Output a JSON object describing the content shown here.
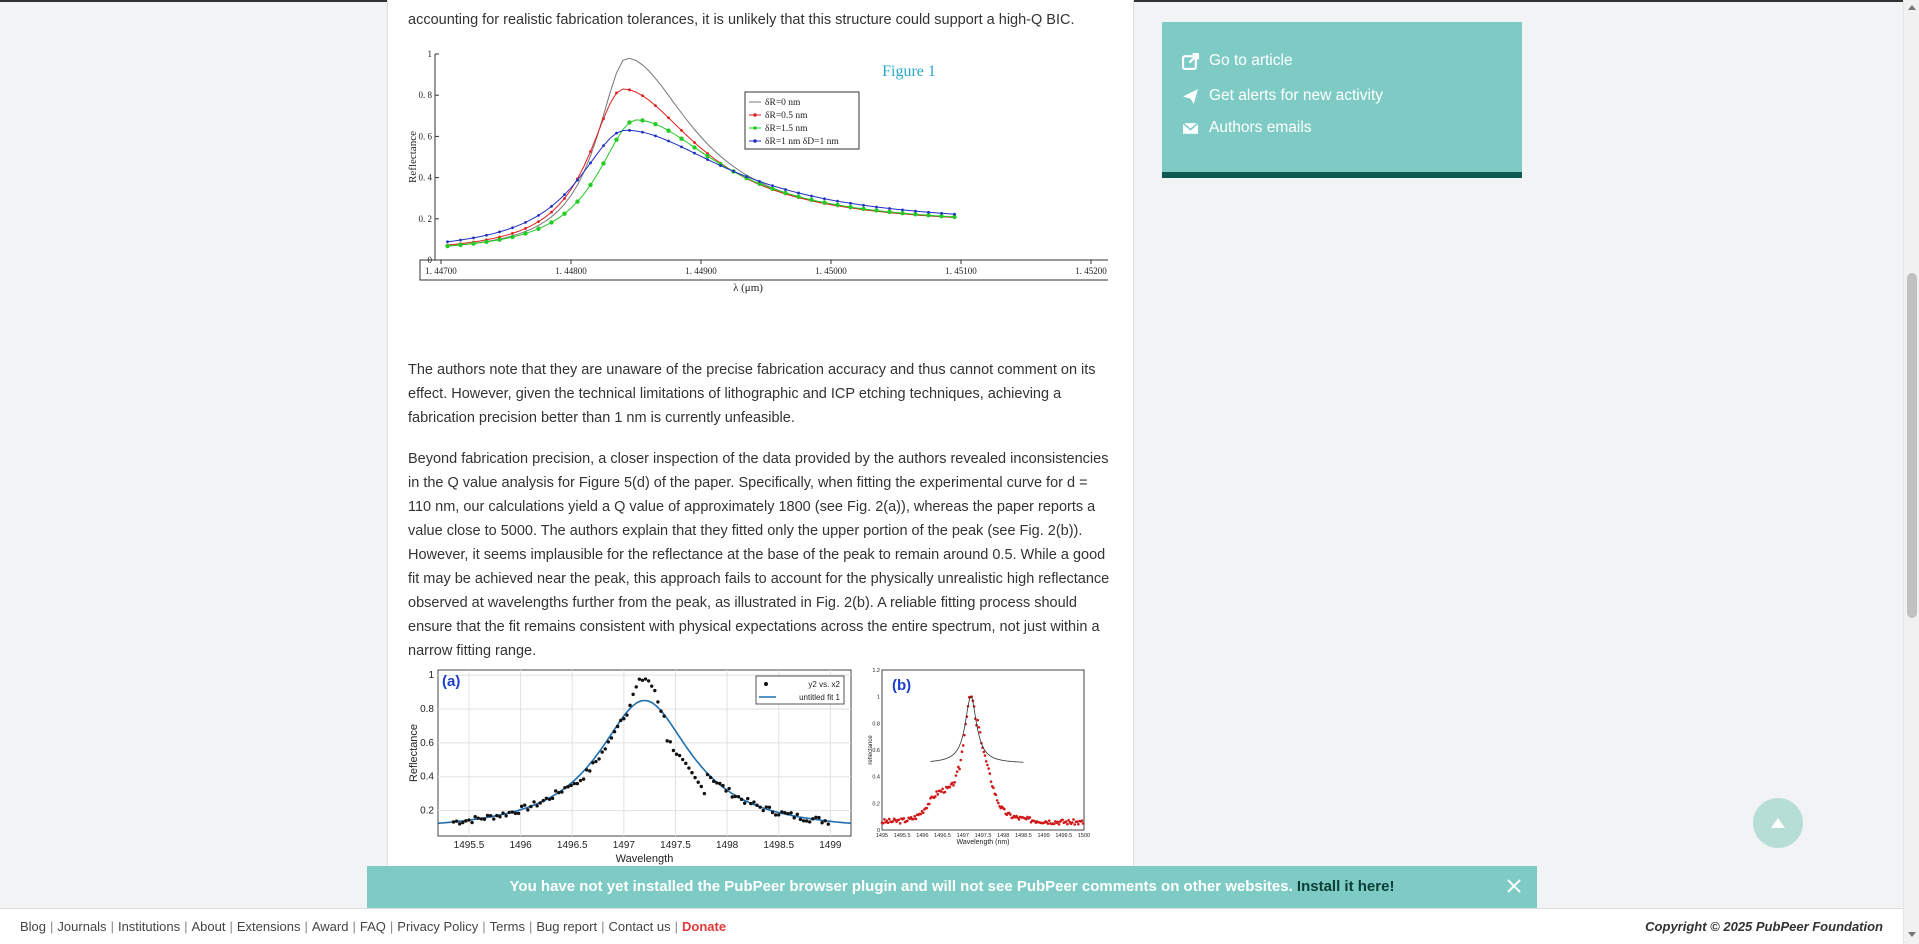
{
  "article": {
    "para0": "accounting for realistic fabrication tolerances, it is unlikely that this structure could support a high-Q BIC.",
    "para1": "The authors note that they are unaware of the precise fabrication accuracy and thus cannot comment on its effect. However, given the technical limitations of lithographic and ICP etching techniques, achieving a fabrication precision better than 1 nm is currently unfeasible.",
    "para2": "Beyond fabrication precision, a closer inspection of the data provided by the authors revealed inconsistencies in the Q value analysis for Figure 5(d) of the paper. Specifically, when fitting the experimental curve for d = 110 nm, our calculations yield a Q value of approximately 1800 (see Fig. 2(a)), whereas the paper reports a value close to 5000. The authors explain that they fitted only the upper portion of the peak (see Fig. 2(b)). However, it seems implausible for the reflectance at the base of the peak to remain around 0.5. While a good fit may be achieved near the peak, this approach fails to account for the physically unrealistic high reflectance observed at wavelengths further from the peak, as illustrated in Fig. 2(b). A reliable fitting process should ensure that the fit remains consistent with physical expectations across the entire spectrum, not just within a narrow fitting range."
  },
  "sidebar": {
    "links": [
      {
        "label": "Go to article",
        "icon": "external-link-icon"
      },
      {
        "label": "Get alerts for new activity",
        "icon": "paper-plane-icon"
      },
      {
        "label": "Authors emails",
        "icon": "envelope-icon"
      }
    ]
  },
  "banner": {
    "message": "You have not yet installed the PubPeer browser plugin and will not see PubPeer comments on other websites.",
    "install_label": "Install it here!"
  },
  "footer": {
    "links": [
      "Blog",
      "Journals",
      "Institutions",
      "About",
      "Extensions",
      "Award",
      "FAQ",
      "Privacy Policy",
      "Terms",
      "Bug report",
      "Contact us"
    ],
    "donate": "Donate",
    "copyright": "Copyright © 2025 PubPeer Foundation"
  },
  "colors": {
    "teal": "#7ecbc6",
    "dark_teal": "#0e5a52",
    "donate": "#e03a3a"
  },
  "chart_data": [
    {
      "type": "line",
      "title": "Figure 1",
      "xlabel": "λ (μm)",
      "ylabel": "Reflectance",
      "xlim": [
        1.447,
        1.452
      ],
      "ylim": [
        0,
        1
      ],
      "x_ticks": [
        "1. 44700",
        "1. 44800",
        "1. 44900",
        "1. 45000",
        "1. 45100",
        "1. 45200"
      ],
      "y_ticks": [
        "0",
        "0. 2",
        "0. 4",
        "0. 6",
        "0. 8",
        "1"
      ],
      "legend_position": "top-right",
      "series": [
        {
          "name": "δR=0 nm",
          "color": "#777777",
          "peak_x": 1.44843,
          "peak_y": 0.98,
          "width": 0.00028,
          "base": 0.16
        },
        {
          "name": "δR=0.5 nm",
          "color": "#e02020",
          "peak_x": 1.4484,
          "peak_y": 0.83,
          "width": 0.00032,
          "base": 0.16
        },
        {
          "name": "δR=1.5 nm",
          "color": "#22cc22",
          "peak_x": 1.4485,
          "peak_y": 0.68,
          "width": 0.00036,
          "base": 0.16
        },
        {
          "name": "δR=1 nm  δD=1 nm",
          "color": "#2030c0",
          "peak_x": 1.44842,
          "peak_y": 0.63,
          "width": 0.00045,
          "base": 0.16
        }
      ]
    },
    {
      "type": "scatter",
      "panel_label": "(a)",
      "xlabel": "Wavelength",
      "ylabel": "Reflectance",
      "xlim": [
        1495.2,
        1499.2
      ],
      "ylim": [
        0.05,
        1.03
      ],
      "x_ticks": [
        "1495.5",
        "1496",
        "1496.5",
        "1497",
        "1497.5",
        "1498",
        "1498.5",
        "1499"
      ],
      "y_ticks": [
        "0.2",
        "0.4",
        "0.6",
        "0.8",
        "1"
      ],
      "legend": [
        "y2 vs. x2",
        "untitled fit 1"
      ],
      "legend_position": "top-right",
      "grid": true,
      "fit": {
        "peak_x": 1497.2,
        "peak_y": 0.85,
        "width": 0.55,
        "base": 0.07
      }
    },
    {
      "type": "scatter",
      "panel_label": "(b)",
      "xlabel": "Wavelength (nm)",
      "ylabel": "reflectance",
      "xlim": [
        1495,
        1500
      ],
      "ylim": [
        0,
        1.2
      ],
      "x_ticks": [
        "1495",
        "1495.5",
        "1496",
        "1496.5",
        "1497",
        "1497.5",
        "1498",
        "1498.5",
        "1499",
        "1499.5",
        "1500"
      ],
      "y_ticks": [
        "0",
        "0.2",
        "0.4",
        "0.6",
        "0.8",
        "1",
        "1.2"
      ],
      "fit": {
        "peak_x": 1497.2,
        "peak_y": 1.0,
        "width": 0.17,
        "base": 0.5
      }
    }
  ]
}
